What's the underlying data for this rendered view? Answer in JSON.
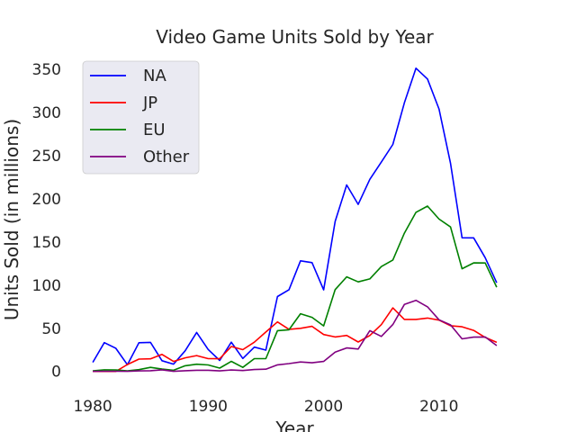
{
  "chart_data": {
    "type": "line",
    "title": "Video Game Units Sold by Year",
    "xlabel": "Year",
    "ylabel": "Units Sold (in millions)",
    "xlim": [
      1978.2,
      2016.8
    ],
    "ylim": [
      -18,
      370
    ],
    "xticks": [
      1980,
      1990,
      2000,
      2010
    ],
    "yticks": [
      0,
      50,
      100,
      150,
      200,
      250,
      300,
      350
    ],
    "grid": false,
    "legend_position": "top-left",
    "x": [
      1980,
      1981,
      1982,
      1983,
      1984,
      1985,
      1986,
      1987,
      1988,
      1989,
      1990,
      1991,
      1992,
      1993,
      1994,
      1995,
      1996,
      1997,
      1998,
      1999,
      2000,
      2001,
      2002,
      2003,
      2004,
      2005,
      2006,
      2007,
      2008,
      2009,
      2010,
      2011,
      2012,
      2013,
      2014,
      2015
    ],
    "series": [
      {
        "name": "NA",
        "color": "#0000ff",
        "values": [
          10.6,
          33.4,
          26.9,
          7.8,
          33.3,
          33.7,
          12.5,
          8.5,
          23.9,
          45.2,
          25.5,
          12.8,
          33.9,
          15.1,
          28.2,
          24.8,
          86.8,
          94.8,
          128.2,
          126.1,
          94.5,
          173.9,
          216.2,
          193.6,
          222.6,
          242.6,
          263.1,
          311.3,
          351.4,
          338.9,
          304.2,
          241.1,
          154.9,
          154.8,
          131.9,
          102.8
        ]
      },
      {
        "name": "JP",
        "color": "#ff0000",
        "values": [
          0,
          0,
          0,
          8.1,
          14.3,
          14.6,
          19.8,
          11.6,
          15.8,
          18.4,
          14.9,
          14.8,
          28.9,
          25.3,
          33.9,
          45.7,
          57.4,
          48.9,
          50.0,
          52.3,
          42.8,
          40.0,
          41.8,
          34.2,
          41.7,
          54.3,
          73.7,
          60.3,
          60.3,
          61.9,
          59.5,
          53.0,
          51.8,
          47.6,
          39.5,
          33.7
        ]
      },
      {
        "name": "EU",
        "color": "#008000",
        "values": [
          0.7,
          1.9,
          1.7,
          0.8,
          2.1,
          4.7,
          2.8,
          1.4,
          6.6,
          8.4,
          7.6,
          3.9,
          11.7,
          4.7,
          14.9,
          14.9,
          47.3,
          48.3,
          66.9,
          62.7,
          52.8,
          94.9,
          109.7,
          103.8,
          107.3,
          121.6,
          129.2,
          160.2,
          184.4,
          191.6,
          176.6,
          167.4,
          119.0,
          125.8,
          125.7,
          97.7
        ]
      },
      {
        "name": "Other",
        "color": "#800080",
        "values": [
          0.1,
          0.3,
          0.3,
          0.1,
          0.7,
          0.9,
          1.9,
          0.2,
          0.9,
          1.4,
          1.4,
          0.7,
          1.7,
          1.1,
          2.2,
          2.6,
          7.7,
          9.1,
          11.0,
          10.1,
          11.6,
          22.5,
          27.3,
          26.0,
          47.3,
          40.6,
          54.4,
          77.6,
          82.4,
          74.9,
          59.9,
          54.0,
          37.8,
          39.8,
          40.0,
          30.0
        ]
      }
    ]
  }
}
